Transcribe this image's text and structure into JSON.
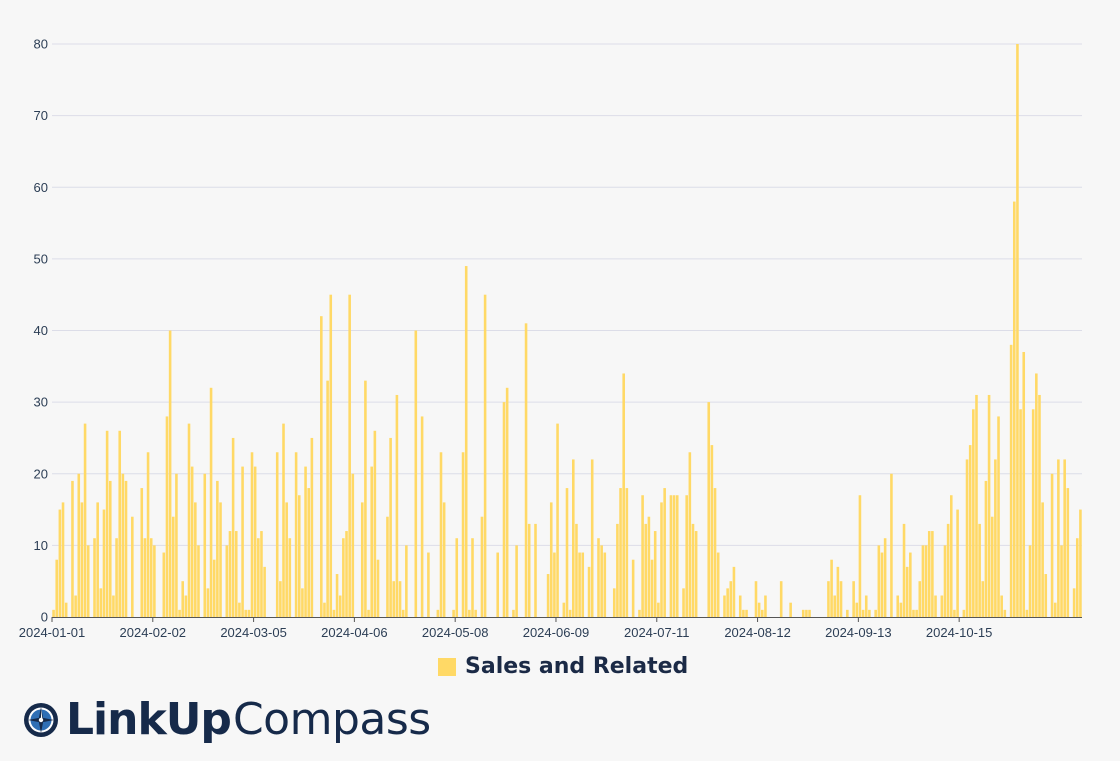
{
  "chart_data": {
    "type": "bar",
    "x_start": "2024-01-01",
    "x_end": "2024-11-04",
    "x_tick_labels": [
      "2024-01-01",
      "2024-02-02",
      "2024-03-05",
      "2024-04-06",
      "2024-05-08",
      "2024-06-09",
      "2024-07-11",
      "2024-08-12",
      "2024-09-13",
      "2024-10-15"
    ],
    "y_ticks": [
      0,
      10,
      20,
      30,
      40,
      50,
      60,
      70,
      80
    ],
    "ylim": [
      0,
      80
    ],
    "grid": true,
    "legend_position": "bottom",
    "series": [
      {
        "name": "Sales and Related",
        "color": "#ffd966",
        "values": [
          1,
          8,
          15,
          16,
          2,
          0,
          19,
          3,
          20,
          16,
          27,
          10,
          0,
          11,
          16,
          4,
          15,
          26,
          19,
          3,
          11,
          26,
          20,
          19,
          0,
          14,
          0,
          0,
          18,
          11,
          23,
          11,
          10,
          0,
          0,
          9,
          28,
          40,
          14,
          20,
          1,
          5,
          3,
          27,
          21,
          16,
          10,
          0,
          20,
          4,
          32,
          8,
          19,
          16,
          0,
          10,
          12,
          25,
          12,
          2,
          21,
          1,
          1,
          23,
          21,
          11,
          12,
          7,
          0,
          0,
          0,
          23,
          5,
          27,
          16,
          11,
          0,
          23,
          17,
          4,
          21,
          18,
          25,
          0,
          0,
          42,
          2,
          33,
          45,
          1,
          6,
          3,
          11,
          12,
          45,
          20,
          0,
          0,
          16,
          33,
          1,
          21,
          26,
          8,
          0,
          0,
          14,
          25,
          5,
          31,
          5,
          1,
          10,
          0,
          0,
          40,
          0,
          28,
          0,
          9,
          0,
          0,
          1,
          23,
          16,
          0,
          0,
          1,
          11,
          0,
          23,
          49,
          1,
          11,
          1,
          0,
          14,
          45,
          0,
          0,
          0,
          9,
          0,
          30,
          32,
          0,
          1,
          10,
          0,
          0,
          41,
          13,
          0,
          13,
          0,
          0,
          0,
          6,
          16,
          9,
          27,
          0,
          2,
          18,
          1,
          22,
          13,
          9,
          9,
          0,
          7,
          22,
          0,
          11,
          10,
          9,
          0,
          0,
          4,
          13,
          18,
          34,
          18,
          0,
          8,
          0,
          1,
          17,
          13,
          14,
          8,
          12,
          2,
          16,
          18,
          0,
          17,
          17,
          17,
          0,
          4,
          17,
          23,
          13,
          12,
          0,
          0,
          0,
          30,
          24,
          18,
          9,
          0,
          3,
          4,
          5,
          7,
          0,
          3,
          1,
          1,
          0,
          0,
          5,
          2,
          1,
          3,
          0,
          0,
          0,
          0,
          5,
          0,
          0,
          2,
          0,
          0,
          0,
          1,
          1,
          1,
          0,
          0,
          0,
          0,
          0,
          5,
          8,
          3,
          7,
          5,
          0,
          1,
          0,
          5,
          2,
          17,
          1,
          3,
          1,
          0,
          1,
          10,
          9,
          11,
          0,
          20,
          0,
          3,
          2,
          13,
          7,
          9,
          1,
          1,
          5,
          10,
          10,
          12,
          12,
          3,
          0,
          3,
          10,
          13,
          17,
          1,
          15,
          0,
          1,
          22,
          24,
          29,
          31,
          13,
          5,
          19,
          31,
          14,
          22,
          28,
          3,
          1,
          0,
          38,
          58,
          80,
          29,
          37,
          1,
          10,
          29,
          34,
          31,
          16,
          6,
          0,
          20,
          2,
          22,
          10,
          22,
          18,
          0,
          4,
          11,
          15
        ]
      }
    ]
  },
  "legend": {
    "label": "Sales and Related"
  },
  "brand": {
    "name_bold": "LinkUp",
    "name_regular": "Compass",
    "icon": "compass-icon"
  }
}
